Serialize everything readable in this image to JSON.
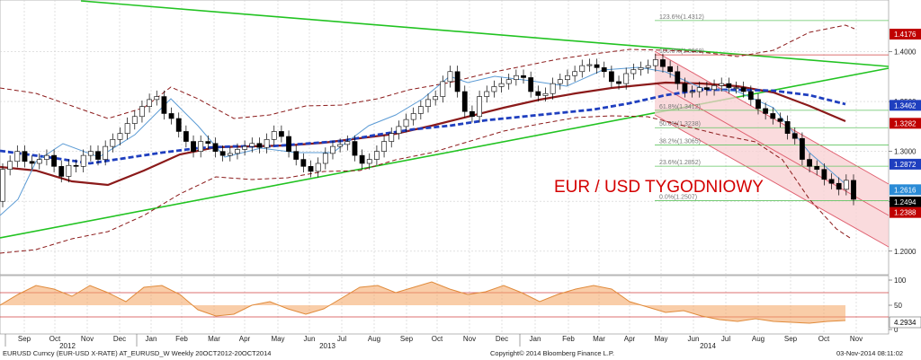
{
  "chart_data": {
    "type": "candlestick",
    "annotation": "EUR / USD TYGODNIOWY",
    "x_ticks": [
      "Sep",
      "Oct",
      "Nov",
      "Dec",
      "Jan",
      "Feb",
      "Mar",
      "Apr",
      "May",
      "Jun",
      "Jul",
      "Aug",
      "Sep",
      "Oct",
      "Nov",
      "Dec",
      "Jan",
      "Feb",
      "Mar",
      "Apr",
      "May",
      "Jun",
      "Jul",
      "Aug",
      "Sep",
      "Oct",
      "Nov"
    ],
    "year_labels": [
      "2012",
      "2013",
      "2014"
    ],
    "y_ticks": [
      "1.4000",
      "1.3500",
      "1.3000",
      "1.2500",
      "1.2000"
    ],
    "ylim": [
      1.18,
      1.45
    ],
    "osc_ticks": [
      "100",
      "50",
      "0"
    ],
    "osc_value_label": "4.2934",
    "price_labels": [
      {
        "text": "1.4176",
        "value": 1.4176,
        "color": "#c00000"
      },
      {
        "text": "1.3462",
        "value": 1.3462,
        "color": "#1f3fbf"
      },
      {
        "text": "1.3282",
        "value": 1.3282,
        "color": "#c00000"
      },
      {
        "text": "1.2872",
        "value": 1.2872,
        "color": "#1f3fbf"
      },
      {
        "text": "1.2616",
        "value": 1.2616,
        "color": "#2a8bd6"
      },
      {
        "text": "1.2494",
        "value": 1.2494,
        "color": "#000000"
      },
      {
        "text": "1.2388",
        "value": 1.2388,
        "color": "#c00000"
      }
    ],
    "fibonacci": [
      {
        "label": "123.6%(1.4312)",
        "value": 1.4312
      },
      {
        "label": "100.0%(1.3968)",
        "value": 1.3968
      },
      {
        "label": "61.8%(1.3412)",
        "value": 1.3412
      },
      {
        "label": "50.0%(1.3238)",
        "value": 1.3238
      },
      {
        "label": "38.2%(1.3065)",
        "value": 1.3065
      },
      {
        "label": "23.6%(1.2852)",
        "value": 1.2852
      },
      {
        "label": "0.0%(1.2507)",
        "value": 1.2507
      }
    ],
    "series": [
      {
        "name": "",
        "open": [
          1.25,
          1.282,
          1.29,
          1.3,
          1.29,
          1.288,
          1.292,
          1.296,
          1.285,
          1.275,
          1.286,
          1.285,
          1.296,
          1.3,
          1.292,
          1.305,
          1.312,
          1.318,
          1.328,
          1.335,
          1.345,
          1.352,
          1.355,
          1.338,
          1.333,
          1.32,
          1.31,
          1.3,
          1.31,
          1.308,
          1.3,
          1.296,
          1.298,
          1.302,
          1.305,
          1.308,
          1.304,
          1.312,
          1.32,
          1.315,
          1.3,
          1.292,
          1.285,
          1.28,
          1.288,
          1.298,
          1.305,
          1.307,
          1.31,
          1.296,
          1.288,
          1.292,
          1.3,
          1.31,
          1.318,
          1.325,
          1.332,
          1.338,
          1.345,
          1.352,
          1.355,
          1.37,
          1.38,
          1.36,
          1.34,
          1.335,
          1.355,
          1.36,
          1.365,
          1.368,
          1.372,
          1.376,
          1.374,
          1.36,
          1.356,
          1.358,
          1.368,
          1.372,
          1.376,
          1.38,
          1.386,
          1.387,
          1.384,
          1.38,
          1.37,
          1.368,
          1.378,
          1.382,
          1.384,
          1.386,
          1.392,
          1.385,
          1.38,
          1.368,
          1.36,
          1.36,
          1.364,
          1.362,
          1.366,
          1.368,
          1.364,
          1.364,
          1.36,
          1.352,
          1.343,
          1.338,
          1.333,
          1.33,
          1.318,
          1.313,
          1.292,
          1.285,
          1.282,
          1.272,
          1.268,
          1.262,
          1.271
        ],
        "close": [
          1.282,
          1.29,
          1.3,
          1.29,
          1.288,
          1.292,
          1.296,
          1.285,
          1.275,
          1.286,
          1.285,
          1.296,
          1.3,
          1.292,
          1.305,
          1.312,
          1.318,
          1.328,
          1.335,
          1.345,
          1.352,
          1.355,
          1.338,
          1.333,
          1.32,
          1.31,
          1.3,
          1.31,
          1.308,
          1.3,
          1.296,
          1.298,
          1.302,
          1.305,
          1.308,
          1.304,
          1.312,
          1.32,
          1.315,
          1.3,
          1.292,
          1.285,
          1.28,
          1.288,
          1.298,
          1.305,
          1.307,
          1.31,
          1.296,
          1.288,
          1.292,
          1.3,
          1.31,
          1.318,
          1.325,
          1.332,
          1.338,
          1.345,
          1.352,
          1.355,
          1.37,
          1.38,
          1.36,
          1.34,
          1.335,
          1.355,
          1.36,
          1.365,
          1.368,
          1.372,
          1.376,
          1.374,
          1.36,
          1.356,
          1.358,
          1.368,
          1.372,
          1.376,
          1.38,
          1.386,
          1.387,
          1.384,
          1.38,
          1.37,
          1.368,
          1.378,
          1.382,
          1.384,
          1.386,
          1.392,
          1.385,
          1.38,
          1.368,
          1.36,
          1.36,
          1.364,
          1.362,
          1.366,
          1.368,
          1.364,
          1.364,
          1.36,
          1.352,
          1.343,
          1.338,
          1.333,
          1.33,
          1.318,
          1.313,
          1.292,
          1.285,
          1.282,
          1.272,
          1.268,
          1.262,
          1.271,
          1.252
        ]
      }
    ]
  },
  "footer": {
    "left": "EURUSD Curncy (EUR-USD X-RATE) AT_EURUSD_W  Weekly 20OCT2012-20OCT2014",
    "center": "Copyright© 2014 Bloomberg Finance L.P.",
    "right": "03-Nov-2014 08:11:02"
  }
}
